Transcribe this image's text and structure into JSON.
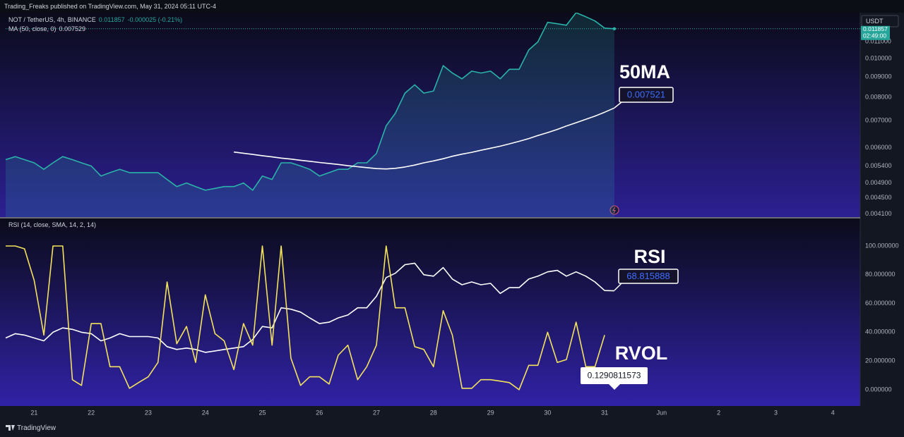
{
  "header": {
    "publisher": "Trading_Freaks published on TradingView.com, May 31, 2024 05:11 UTC-4"
  },
  "footer": {
    "brand": "TradingView"
  },
  "chart_data": [
    {
      "type": "line",
      "log_scale": true,
      "grid": false,
      "currency": "USDT",
      "change": "-0.000025 (-0.21%)",
      "countdown": "02:49:00",
      "annotation": "50MA",
      "value_callout": "0.007521",
      "xlim": [
        20.5,
        35.48
      ],
      "ylim": [
        0.00403,
        0.013
      ],
      "yticks": [
        {
          "value": 0.0041,
          "label": "0.004100"
        },
        {
          "value": 0.0045,
          "label": "0.004500"
        },
        {
          "value": 0.0049,
          "label": "0.004900"
        },
        {
          "value": 0.0054,
          "label": "0.005400"
        },
        {
          "value": 0.006,
          "label": "0.006000"
        },
        {
          "value": 0.007,
          "label": "0.007000"
        },
        {
          "value": 0.008,
          "label": "0.008000"
        },
        {
          "value": 0.009,
          "label": "0.009000"
        },
        {
          "value": 0.01,
          "label": "0.010000"
        },
        {
          "value": 0.011,
          "label": "0.011000"
        }
      ],
      "x": [
        20.5,
        20.67,
        20.83,
        21,
        21.17,
        21.33,
        21.5,
        21.67,
        21.83,
        22,
        22.17,
        22.33,
        22.5,
        22.67,
        22.83,
        23,
        23.17,
        23.33,
        23.5,
        23.67,
        23.83,
        24,
        24.17,
        24.33,
        24.5,
        24.67,
        24.83,
        25,
        25.17,
        25.33,
        25.5,
        25.67,
        25.83,
        26,
        26.17,
        26.33,
        26.5,
        26.67,
        26.83,
        27,
        27.17,
        27.33,
        27.5,
        27.67,
        27.83,
        28,
        28.17,
        28.33,
        28.5,
        28.67,
        28.83,
        29,
        29.17,
        29.33,
        29.5,
        29.67,
        29.83,
        30,
        30.17,
        30.33,
        30.5,
        30.67,
        30.83,
        31,
        31.17
      ],
      "series": [
        {
          "name": "NOT / TetherUS, 4h, BINANCE",
          "color": "#2ab3a8",
          "area": true,
          "values": [
            0.0056,
            0.0057,
            0.0056,
            0.0055,
            0.0053,
            0.0055,
            0.0057,
            0.0056,
            0.0055,
            0.0054,
            0.0051,
            0.0052,
            0.0053,
            0.0052,
            0.0052,
            0.0052,
            0.0052,
            0.005,
            0.0048,
            0.0049,
            0.0048,
            0.0047,
            0.00475,
            0.0048,
            0.0048,
            0.0049,
            0.0047,
            0.0051,
            0.005,
            0.0055,
            0.0055,
            0.0054,
            0.0053,
            0.0051,
            0.0052,
            0.0053,
            0.0053,
            0.0055,
            0.0055,
            0.0058,
            0.0068,
            0.0073,
            0.0082,
            0.0086,
            0.0082,
            0.0083,
            0.0096,
            0.0092,
            0.0089,
            0.0093,
            0.0092,
            0.0093,
            0.0089,
            0.0094,
            0.0094,
            0.0105,
            0.011,
            0.0123,
            0.0122,
            0.0121,
            0.013,
            0.0127,
            0.0124,
            0.0119,
            0.011857
          ]
        },
        {
          "name": "MA (50, close, 0)",
          "color": "#ffffff",
          "area": false,
          "values": [
            null,
            null,
            null,
            null,
            null,
            null,
            null,
            null,
            null,
            null,
            null,
            null,
            null,
            null,
            null,
            null,
            null,
            null,
            null,
            null,
            null,
            null,
            null,
            null,
            0.00585,
            0.00581,
            0.00577,
            0.00573,
            0.00569,
            0.00565,
            0.00562,
            0.00558,
            0.00555,
            0.00551,
            0.00548,
            0.00545,
            0.00541,
            0.00538,
            0.00535,
            0.00532,
            0.00531,
            0.00533,
            0.00537,
            0.00543,
            0.0055,
            0.00556,
            0.00563,
            0.00571,
            0.00578,
            0.00584,
            0.00591,
            0.00598,
            0.00605,
            0.00613,
            0.00622,
            0.00632,
            0.00643,
            0.00654,
            0.00666,
            0.00679,
            0.00692,
            0.00706,
            0.00719,
            0.00735,
            0.007529
          ]
        }
      ]
    },
    {
      "type": "line",
      "log_scale": false,
      "grid": false,
      "title": "RSI (14, close, SMA, 14, 2, 14)",
      "rvol_callout": "0.1290811573",
      "xlim": [
        20.5,
        35.48
      ],
      "ylim": [
        -11.3,
        119.1
      ],
      "xticks": [
        21,
        22,
        23,
        24,
        25,
        26,
        27,
        28,
        29,
        30,
        31,
        {
          "value": 32,
          "label": "Jun"
        },
        {
          "value": 33,
          "label": "2"
        },
        {
          "value": 34,
          "label": "3"
        },
        {
          "value": 35,
          "label": "4"
        }
      ],
      "yticks": [
        {
          "value": 0,
          "label": "0.000000"
        },
        {
          "value": 20,
          "label": "20.000000"
        },
        {
          "value": 40,
          "label": "40.000000"
        },
        {
          "value": 60,
          "label": "60.000000"
        },
        {
          "value": 80,
          "label": "80.000000"
        },
        {
          "value": 100,
          "label": "100.000000"
        }
      ],
      "x": [
        20.5,
        20.67,
        20.83,
        21,
        21.17,
        21.33,
        21.5,
        21.67,
        21.83,
        22,
        22.17,
        22.33,
        22.5,
        22.67,
        22.83,
        23,
        23.17,
        23.33,
        23.5,
        23.67,
        23.83,
        24,
        24.17,
        24.33,
        24.5,
        24.67,
        24.83,
        25,
        25.17,
        25.33,
        25.5,
        25.67,
        25.83,
        26,
        26.17,
        26.33,
        26.5,
        26.67,
        26.83,
        27,
        27.17,
        27.33,
        27.5,
        27.67,
        27.83,
        28,
        28.17,
        28.33,
        28.5,
        28.67,
        28.83,
        29,
        29.17,
        29.33,
        29.5,
        29.67,
        29.83,
        30,
        30.17,
        30.33,
        30.5,
        30.67,
        30.83,
        31,
        31.17
      ],
      "series": [
        {
          "name": "RSI",
          "color": "#ffffff",
          "values": [
            36,
            39,
            38,
            36,
            34,
            40,
            43,
            42,
            40,
            39,
            34,
            36,
            39,
            37,
            37,
            37,
            36,
            30,
            28,
            29,
            28,
            26,
            27,
            28,
            29,
            30,
            35,
            44,
            43,
            57,
            56,
            54,
            50,
            46,
            47,
            50,
            52,
            57,
            57,
            65,
            78,
            81,
            87,
            88,
            80,
            79,
            85,
            77,
            73,
            75,
            73,
            74,
            67,
            71,
            71,
            77,
            79,
            82,
            83,
            79,
            82,
            79,
            75,
            69,
            68.815888
          ]
        },
        {
          "name": "RVOL",
          "color": "#f3e35c",
          "values": [
            100,
            100,
            98,
            76,
            38,
            100,
            100,
            7,
            3,
            46,
            46,
            16,
            16,
            1,
            5,
            9,
            19,
            75,
            32,
            44,
            19,
            66,
            39,
            34,
            14,
            46,
            31,
            100,
            31,
            100,
            22,
            3,
            9,
            9,
            4,
            24,
            31,
            7,
            16,
            31,
            100,
            57,
            57,
            30,
            28,
            16,
            55,
            38,
            1,
            1,
            7,
            7,
            6,
            5,
            0,
            17,
            17,
            40,
            19,
            21,
            47,
            16,
            16,
            38,
            null
          ]
        }
      ]
    }
  ]
}
